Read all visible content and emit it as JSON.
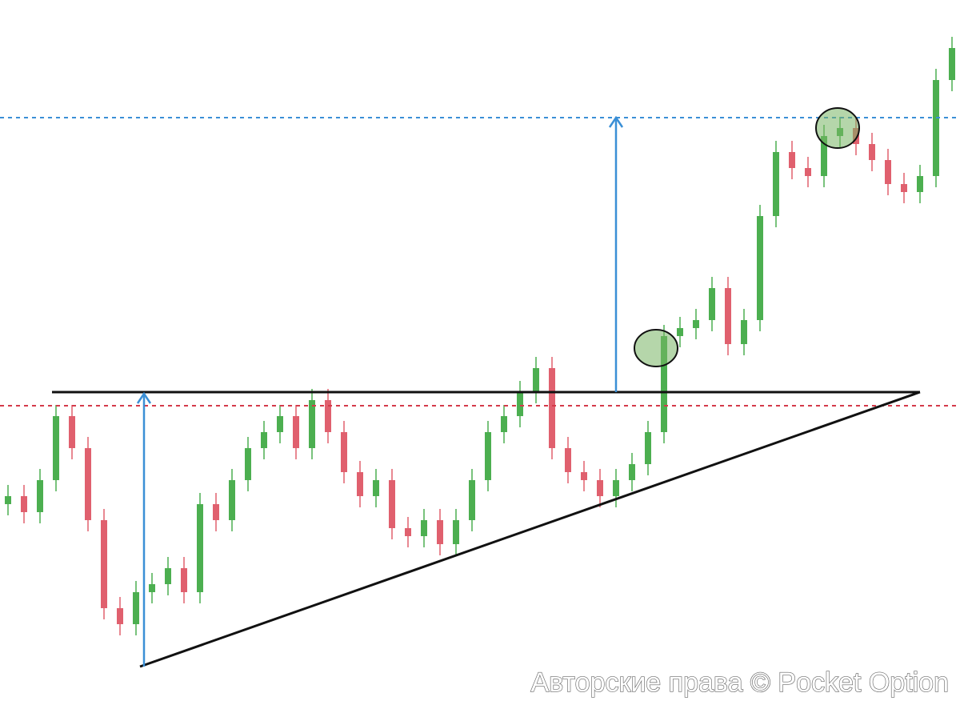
{
  "chart_data": {
    "type": "candlestick",
    "up_color": "#4caf50",
    "down_color": "#e0606e",
    "ylim": [
      0,
      876
    ],
    "open": [
      246,
      256,
      236,
      276,
      356,
      316,
      226,
      116,
      96,
      136,
      146,
      166,
      136,
      246,
      226,
      276,
      316,
      336,
      356,
      316,
      376,
      336,
      286,
      256,
      276,
      216,
      206,
      226,
      196,
      226,
      276,
      336,
      356,
      386,
      416,
      316,
      286,
      276,
      256,
      276,
      296,
      336,
      456,
      466,
      476,
      516,
      446,
      476,
      606,
      686,
      666,
      656,
      706,
      716,
      696,
      676,
      646,
      636,
      656,
      776
    ],
    "close": [
      256,
      236,
      276,
      356,
      316,
      226,
      116,
      96,
      136,
      146,
      166,
      136,
      246,
      226,
      276,
      316,
      336,
      356,
      316,
      376,
      336,
      286,
      256,
      276,
      216,
      206,
      226,
      196,
      226,
      276,
      336,
      356,
      386,
      416,
      316,
      286,
      276,
      256,
      276,
      296,
      336,
      456,
      466,
      476,
      516,
      446,
      476,
      606,
      686,
      666,
      656,
      706,
      716,
      696,
      676,
      646,
      636,
      656,
      776,
      816
    ],
    "high": [
      270,
      270,
      290,
      370,
      370,
      330,
      240,
      130,
      150,
      160,
      180,
      180,
      260,
      260,
      290,
      330,
      350,
      370,
      370,
      390,
      390,
      350,
      300,
      290,
      290,
      230,
      240,
      240,
      240,
      290,
      350,
      370,
      400,
      430,
      430,
      330,
      300,
      290,
      290,
      310,
      350,
      470,
      480,
      490,
      530,
      530,
      490,
      620,
      700,
      700,
      680,
      720,
      730,
      730,
      710,
      690,
      660,
      670,
      790,
      830
    ],
    "low": [
      232,
      222,
      222,
      262,
      302,
      212,
      102,
      82,
      82,
      122,
      132,
      122,
      122,
      212,
      212,
      262,
      302,
      322,
      302,
      302,
      322,
      272,
      242,
      242,
      202,
      192,
      192,
      182,
      182,
      212,
      262,
      322,
      342,
      372,
      302,
      272,
      262,
      242,
      242,
      262,
      282,
      322,
      442,
      452,
      462,
      432,
      432,
      462,
      592,
      652,
      642,
      642,
      692,
      682,
      662,
      632,
      622,
      622,
      642,
      762
    ],
    "levels": {
      "resistance": 386,
      "entry": 369,
      "target": 729
    },
    "support": [
      43,
      386
    ],
    "arrows": [
      [
        43,
        384
      ],
      [
        386,
        729
      ]
    ],
    "watermark": "Авторские права © Pocket Option"
  }
}
